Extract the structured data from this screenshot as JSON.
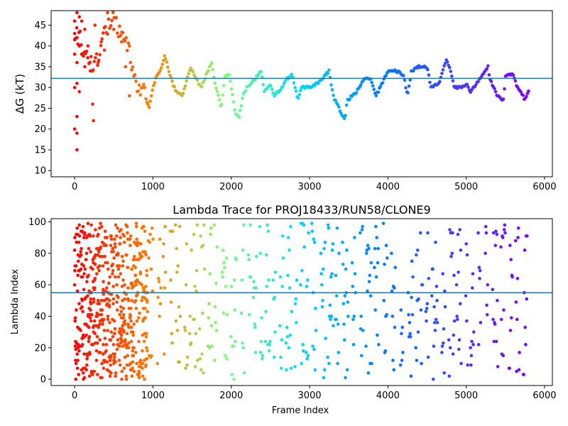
{
  "chart_data": [
    {
      "type": "scatter",
      "title": "",
      "xlabel": "",
      "ylabel": "ΔG (kT)",
      "xlim": [
        -300,
        6100
      ],
      "ylim": [
        8.5,
        48.5
      ],
      "xticks": [
        0,
        1000,
        2000,
        3000,
        4000,
        5000,
        6000
      ],
      "yticks": [
        10,
        15,
        20,
        25,
        30,
        35,
        40,
        45
      ],
      "hline": 32.2,
      "colormap": "rainbow",
      "colormap_stops": [
        "#ff0000",
        "#ff8000",
        "#80ff80",
        "#00d4ff",
        "#0080ff",
        "#4040ff",
        "#8000ff"
      ],
      "hline_color": "#1f77b4",
      "early_points": [
        [
          0,
          46
        ],
        [
          0,
          43
        ],
        [
          0,
          38
        ],
        [
          0,
          30
        ],
        [
          0,
          20
        ],
        [
          30,
          48
        ],
        [
          30,
          42
        ],
        [
          30,
          36
        ],
        [
          30,
          31
        ],
        [
          30,
          23
        ],
        [
          30,
          19
        ],
        [
          30,
          15
        ],
        [
          60,
          47
        ],
        [
          60,
          40
        ],
        [
          60,
          29
        ],
        [
          90,
          46
        ],
        [
          90,
          38
        ],
        [
          130,
          44
        ],
        [
          130,
          35
        ],
        [
          170,
          40
        ],
        [
          200,
          34
        ],
        [
          230,
          26
        ],
        [
          240,
          22
        ],
        [
          260,
          45
        ],
        [
          300,
          36
        ],
        [
          340,
          41
        ],
        [
          380,
          39
        ],
        [
          420,
          48
        ],
        [
          500,
          44
        ],
        [
          600,
          41
        ],
        [
          650,
          35
        ],
        [
          700,
          28
        ]
      ],
      "trace_keys": [
        [
          0,
          44
        ],
        [
          100,
          40
        ],
        [
          200,
          36
        ],
        [
          300,
          37
        ],
        [
          400,
          44
        ],
        [
          500,
          46
        ],
        [
          600,
          42
        ],
        [
          700,
          38
        ],
        [
          800,
          31
        ],
        [
          880,
          29
        ],
        [
          950,
          25
        ],
        [
          1000,
          30
        ],
        [
          1050,
          33
        ],
        [
          1100,
          34
        ],
        [
          1150,
          38
        ],
        [
          1200,
          34
        ],
        [
          1250,
          31
        ],
        [
          1300,
          29
        ],
        [
          1380,
          28
        ],
        [
          1420,
          31
        ],
        [
          1480,
          35
        ],
        [
          1550,
          32
        ],
        [
          1620,
          30
        ],
        [
          1700,
          34
        ],
        [
          1750,
          36
        ],
        [
          1800,
          30
        ],
        [
          1850,
          27
        ],
        [
          1870,
          25
        ],
        [
          1920,
          33
        ],
        [
          1980,
          33
        ],
        [
          2000,
          30
        ],
        [
          2050,
          24
        ],
        [
          2100,
          23
        ],
        [
          2150,
          28
        ],
        [
          2200,
          30
        ],
        [
          2300,
          32
        ],
        [
          2380,
          34
        ],
        [
          2420,
          29
        ],
        [
          2500,
          31
        ],
        [
          2550,
          28
        ],
        [
          2650,
          30
        ],
        [
          2700,
          32
        ],
        [
          2780,
          33
        ],
        [
          2850,
          27
        ],
        [
          2900,
          30
        ],
        [
          3000,
          30
        ],
        [
          3100,
          31
        ],
        [
          3150,
          32
        ],
        [
          3250,
          34
        ],
        [
          3300,
          28
        ],
        [
          3400,
          24
        ],
        [
          3450,
          22
        ],
        [
          3480,
          27
        ],
        [
          3550,
          28
        ],
        [
          3600,
          29
        ],
        [
          3700,
          32
        ],
        [
          3780,
          32
        ],
        [
          3850,
          28
        ],
        [
          3900,
          30
        ],
        [
          4000,
          34
        ],
        [
          4100,
          34
        ],
        [
          4200,
          33
        ],
        [
          4250,
          28
        ],
        [
          4300,
          34
        ],
        [
          4400,
          35
        ],
        [
          4500,
          35
        ],
        [
          4550,
          30
        ],
        [
          4650,
          31
        ],
        [
          4750,
          37
        ],
        [
          4800,
          34
        ],
        [
          4850,
          30
        ],
        [
          4950,
          30
        ],
        [
          5000,
          31
        ],
        [
          5050,
          29
        ],
        [
          5100,
          30
        ],
        [
          5200,
          33
        ],
        [
          5280,
          35
        ],
        [
          5300,
          32
        ],
        [
          5400,
          28
        ],
        [
          5480,
          27
        ],
        [
          5500,
          33
        ],
        [
          5600,
          33
        ],
        [
          5650,
          30
        ],
        [
          5700,
          29
        ],
        [
          5750,
          27
        ],
        [
          5800,
          29
        ]
      ]
    },
    {
      "type": "scatter",
      "title": "Lambda Trace for PROJ18433/RUN58/CLONE9",
      "xlabel": "Frame Index",
      "ylabel": "Lambda Index",
      "xlim": [
        -300,
        6100
      ],
      "ylim": [
        -4,
        102
      ],
      "xticks": [
        0,
        1000,
        2000,
        3000,
        4000,
        5000,
        6000
      ],
      "yticks": [
        0,
        20,
        40,
        60,
        80,
        100
      ],
      "hline": 55,
      "colormap": "rainbow",
      "colormap_stops": [
        "#ff0000",
        "#ff8000",
        "#80ff80",
        "#00d4ff",
        "#0080ff",
        "#4040ff",
        "#8000ff"
      ],
      "hline_color": "#1f77b4",
      "frames": 5800,
      "lambda_range": [
        0,
        99
      ]
    }
  ]
}
